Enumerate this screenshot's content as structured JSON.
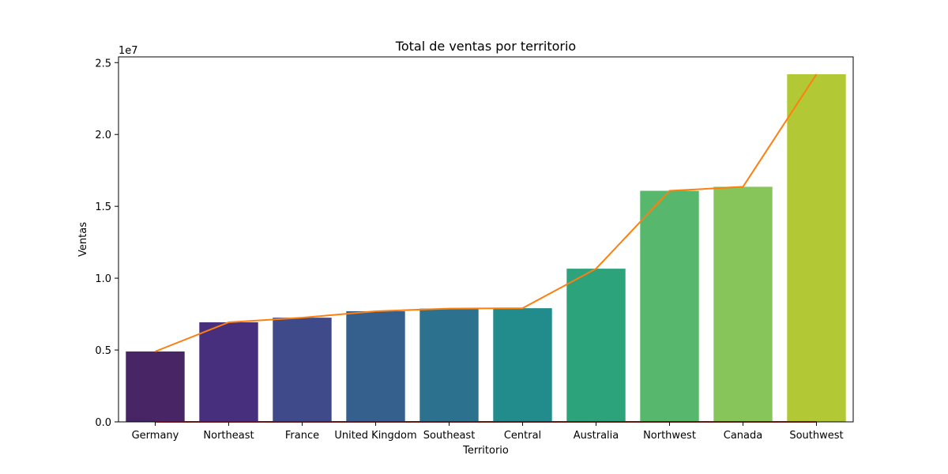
{
  "chart_data": {
    "type": "bar",
    "title": "Total de ventas por territorio",
    "xlabel": "Territorio",
    "ylabel": "Ventas",
    "y_offset_text": "1e7",
    "y_scale": 10000000,
    "categories": [
      "Germany",
      "Northeast",
      "France",
      "United Kingdom",
      "Southeast",
      "Central",
      "Australia",
      "Northwest",
      "Canada",
      "Southwest"
    ],
    "values": [
      4900000,
      6930000,
      7250000,
      7700000,
      7880000,
      7910000,
      10660000,
      16080000,
      16360000,
      24190000
    ],
    "overlay_line_values": [
      4900000,
      6930000,
      7250000,
      7700000,
      7880000,
      7910000,
      10660000,
      16080000,
      16360000,
      24190000
    ],
    "baseline_line_values": [
      0,
      0,
      0,
      0,
      0,
      0,
      0,
      0,
      0,
      0
    ],
    "yticks": [
      0,
      5000000,
      10000000,
      15000000,
      20000000,
      25000000
    ],
    "ytick_labels": [
      "0.0",
      "0.5",
      "1.0",
      "1.5",
      "2.0",
      "2.5"
    ],
    "ylim": [
      0,
      25400000
    ],
    "bar_colors": [
      "#482666",
      "#472f7d",
      "#3e4a89",
      "#35608d",
      "#2c718e",
      "#228c8d",
      "#2ca37b",
      "#57b86d",
      "#87c55b",
      "#b2c835"
    ],
    "line_color": "#ff7f0e",
    "baseline_color": "#d62728",
    "grid": false,
    "legend": "none"
  }
}
